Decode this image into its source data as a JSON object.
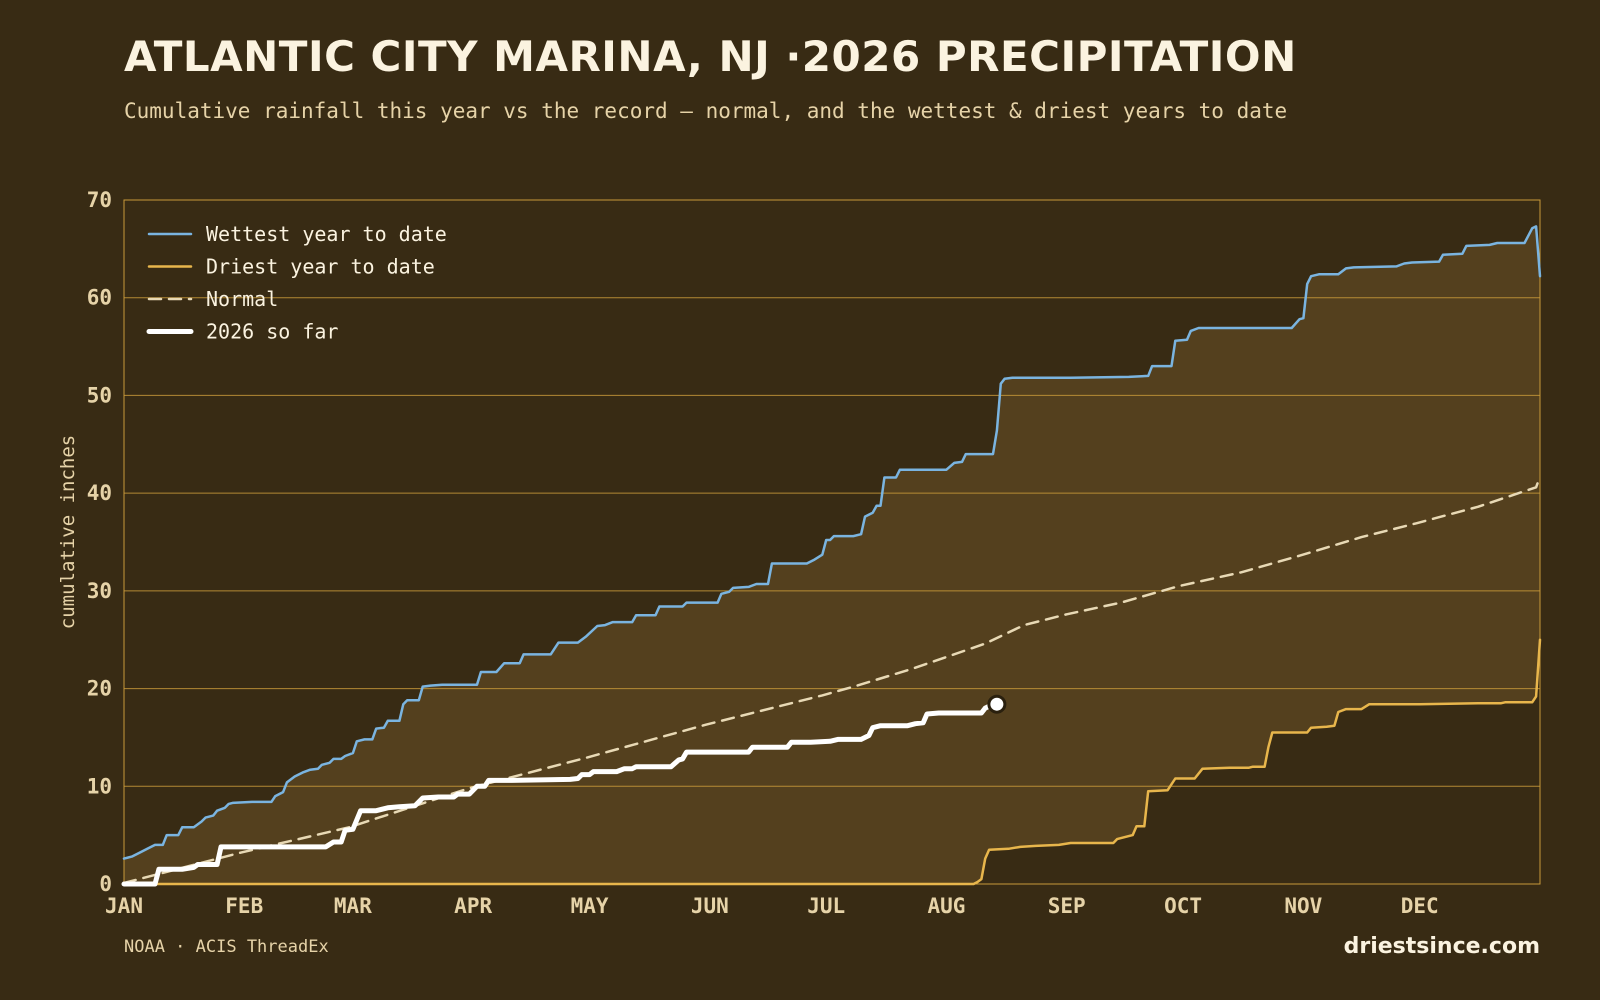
{
  "header": {
    "title": "ATLANTIC CITY MARINA, NJ ·2026 PRECIPITATION",
    "subtitle": "Cumulative rainfall this year vs the record — normal, and the wettest & driest years to date"
  },
  "footer": {
    "source": "NOAA · ACIS ThreadEx",
    "brand": "driestsince.com"
  },
  "colors": {
    "background": "#382b14",
    "band_fill": "#54401e",
    "grid": "#c99a3a",
    "wettest": "#7ab4e0",
    "driest": "#e8b64c",
    "normal": "#e8d9b5",
    "current": "#ffffff"
  },
  "chart_data": {
    "type": "line",
    "ylabel": "cumulative inches",
    "xlabel": "",
    "ylim": [
      0,
      70
    ],
    "yticks": [
      0,
      10,
      20,
      30,
      40,
      50,
      60,
      70
    ],
    "xlim": [
      1,
      366
    ],
    "month_ticks": [
      {
        "label": "JAN",
        "day": 1
      },
      {
        "label": "FEB",
        "day": 32
      },
      {
        "label": "MAR",
        "day": 60
      },
      {
        "label": "APR",
        "day": 91
      },
      {
        "label": "MAY",
        "day": 121
      },
      {
        "label": "JUN",
        "day": 152
      },
      {
        "label": "JUL",
        "day": 182
      },
      {
        "label": "AUG",
        "day": 213
      },
      {
        "label": "SEP",
        "day": 244
      },
      {
        "label": "OCT",
        "day": 274
      },
      {
        "label": "NOV",
        "day": 305
      },
      {
        "label": "DEC",
        "day": 335
      }
    ],
    "grid": true,
    "legend_position": "top-left",
    "series": [
      {
        "name": "Wettest year to date",
        "style": "line",
        "points": [
          [
            1,
            2.6
          ],
          [
            3,
            2.8
          ],
          [
            5,
            3.2
          ],
          [
            7,
            3.6
          ],
          [
            9,
            4.0
          ],
          [
            11,
            4.0
          ],
          [
            12,
            5.0
          ],
          [
            15,
            5.0
          ],
          [
            16,
            5.8
          ],
          [
            19,
            5.8
          ],
          [
            21,
            6.4
          ],
          [
            22,
            6.8
          ],
          [
            24,
            7.0
          ],
          [
            25,
            7.5
          ],
          [
            27,
            7.8
          ],
          [
            28,
            8.2
          ],
          [
            29,
            8.3
          ],
          [
            34,
            8.4
          ],
          [
            39,
            8.4
          ],
          [
            40,
            9.0
          ],
          [
            42,
            9.4
          ],
          [
            43,
            10.4
          ],
          [
            45,
            11.0
          ],
          [
            47,
            11.4
          ],
          [
            49,
            11.7
          ],
          [
            51,
            11.8
          ],
          [
            52,
            12.2
          ],
          [
            54,
            12.4
          ],
          [
            55,
            12.8
          ],
          [
            57,
            12.8
          ],
          [
            58,
            13.1
          ],
          [
            60,
            13.4
          ],
          [
            61,
            14.6
          ],
          [
            63,
            14.8
          ],
          [
            65,
            14.8
          ],
          [
            66,
            15.9
          ],
          [
            68,
            16.0
          ],
          [
            69,
            16.7
          ],
          [
            72,
            16.7
          ],
          [
            73,
            18.4
          ],
          [
            74,
            18.8
          ],
          [
            77,
            18.8
          ],
          [
            78,
            20.2
          ],
          [
            80,
            20.3
          ],
          [
            83,
            20.4
          ],
          [
            92,
            20.4
          ],
          [
            93,
            21.7
          ],
          [
            97,
            21.7
          ],
          [
            99,
            22.6
          ],
          [
            103,
            22.6
          ],
          [
            104,
            23.5
          ],
          [
            111,
            23.5
          ],
          [
            113,
            24.7
          ],
          [
            118,
            24.7
          ],
          [
            120,
            25.3
          ],
          [
            123,
            26.4
          ],
          [
            125,
            26.5
          ],
          [
            127,
            26.8
          ],
          [
            132,
            26.8
          ],
          [
            133,
            27.5
          ],
          [
            138,
            27.5
          ],
          [
            139,
            28.4
          ],
          [
            145,
            28.4
          ],
          [
            146,
            28.8
          ],
          [
            154,
            28.8
          ],
          [
            155,
            29.7
          ],
          [
            157,
            29.9
          ],
          [
            158,
            30.3
          ],
          [
            162,
            30.4
          ],
          [
            164,
            30.7
          ],
          [
            167,
            30.7
          ],
          [
            168,
            32.8
          ],
          [
            177,
            32.8
          ],
          [
            179,
            33.2
          ],
          [
            181,
            33.7
          ],
          [
            182,
            35.2
          ],
          [
            183,
            35.2
          ],
          [
            184,
            35.6
          ],
          [
            189,
            35.6
          ],
          [
            191,
            35.8
          ],
          [
            192,
            37.6
          ],
          [
            194,
            38.0
          ],
          [
            195,
            38.7
          ],
          [
            196,
            38.7
          ],
          [
            197,
            41.6
          ],
          [
            200,
            41.6
          ],
          [
            201,
            42.4
          ],
          [
            213,
            42.4
          ],
          [
            215,
            43.1
          ],
          [
            217,
            43.2
          ],
          [
            218,
            44.0
          ],
          [
            225,
            44.0
          ],
          [
            226,
            46.4
          ],
          [
            227,
            51.2
          ],
          [
            228,
            51.7
          ],
          [
            230,
            51.8
          ],
          [
            245,
            51.8
          ],
          [
            260,
            51.9
          ],
          [
            265,
            52.0
          ],
          [
            266,
            53.0
          ],
          [
            271,
            53.0
          ],
          [
            272,
            55.6
          ],
          [
            275,
            55.7
          ],
          [
            276,
            56.6
          ],
          [
            278,
            56.9
          ],
          [
            302,
            56.9
          ],
          [
            304,
            57.8
          ],
          [
            305,
            57.9
          ],
          [
            306,
            61.4
          ],
          [
            307,
            62.2
          ],
          [
            309,
            62.4
          ],
          [
            314,
            62.4
          ],
          [
            316,
            63.0
          ],
          [
            318,
            63.1
          ],
          [
            329,
            63.2
          ],
          [
            331,
            63.5
          ],
          [
            333,
            63.6
          ],
          [
            340,
            63.7
          ],
          [
            341,
            64.4
          ],
          [
            346,
            64.5
          ],
          [
            347,
            65.3
          ],
          [
            353,
            65.4
          ],
          [
            355,
            65.6
          ],
          [
            362,
            65.6
          ],
          [
            364,
            67.1
          ],
          [
            365,
            67.3
          ],
          [
            366,
            62.2
          ]
        ]
      },
      {
        "name": "Driest year to date",
        "style": "line",
        "points": [
          [
            1,
            0
          ],
          [
            220,
            0
          ],
          [
            221,
            0.2
          ],
          [
            222,
            0.5
          ],
          [
            223,
            2.6
          ],
          [
            224,
            3.5
          ],
          [
            229,
            3.6
          ],
          [
            232,
            3.8
          ],
          [
            236,
            3.9
          ],
          [
            242,
            4.0
          ],
          [
            245,
            4.2
          ],
          [
            256,
            4.2
          ],
          [
            257,
            4.6
          ],
          [
            259,
            4.8
          ],
          [
            261,
            5.0
          ],
          [
            262,
            5.9
          ],
          [
            264,
            5.9
          ],
          [
            265,
            9.5
          ],
          [
            270,
            9.6
          ],
          [
            272,
            10.8
          ],
          [
            277,
            10.8
          ],
          [
            279,
            11.8
          ],
          [
            286,
            11.9
          ],
          [
            291,
            11.9
          ],
          [
            292,
            12.0
          ],
          [
            295,
            12.0
          ],
          [
            296,
            14.0
          ],
          [
            297,
            15.5
          ],
          [
            306,
            15.5
          ],
          [
            307,
            16.0
          ],
          [
            311,
            16.1
          ],
          [
            313,
            16.2
          ],
          [
            314,
            17.6
          ],
          [
            316,
            17.9
          ],
          [
            320,
            17.9
          ],
          [
            322,
            18.4
          ],
          [
            335,
            18.4
          ],
          [
            350,
            18.5
          ],
          [
            356,
            18.5
          ],
          [
            357,
            18.6
          ],
          [
            364,
            18.6
          ],
          [
            365,
            19.2
          ],
          [
            366,
            25.0
          ]
        ]
      },
      {
        "name": "Normal",
        "style": "dashed",
        "points": [
          [
            1,
            0.1
          ],
          [
            31,
            3.2
          ],
          [
            59,
            5.8
          ],
          [
            90,
            9.8
          ],
          [
            120,
            12.9
          ],
          [
            151,
            16.3
          ],
          [
            181,
            19.3
          ],
          [
            190,
            20.3
          ],
          [
            204,
            22.0
          ],
          [
            212,
            23.1
          ],
          [
            223,
            24.6
          ],
          [
            233,
            26.5
          ],
          [
            244,
            27.6
          ],
          [
            258,
            28.8
          ],
          [
            273,
            30.5
          ],
          [
            289,
            31.9
          ],
          [
            304,
            33.6
          ],
          [
            320,
            35.5
          ],
          [
            334,
            36.9
          ],
          [
            350,
            38.6
          ],
          [
            365,
            40.6
          ],
          [
            366,
            41.7
          ]
        ]
      },
      {
        "name": "2026 so far",
        "style": "thick",
        "points": [
          [
            1,
            0
          ],
          [
            9,
            0
          ],
          [
            10,
            1.5
          ],
          [
            16,
            1.5
          ],
          [
            19,
            1.7
          ],
          [
            20,
            2.0
          ],
          [
            25,
            2.0
          ],
          [
            26,
            3.8
          ],
          [
            38,
            3.8
          ],
          [
            53,
            3.8
          ],
          [
            55,
            4.3
          ],
          [
            57,
            4.3
          ],
          [
            58,
            5.5
          ],
          [
            60,
            5.6
          ],
          [
            62,
            7.5
          ],
          [
            66,
            7.5
          ],
          [
            69,
            7.8
          ],
          [
            72,
            7.9
          ],
          [
            76,
            8.0
          ],
          [
            78,
            8.8
          ],
          [
            82,
            8.9
          ],
          [
            86,
            8.9
          ],
          [
            87,
            9.2
          ],
          [
            90,
            9.2
          ],
          [
            92,
            10.0
          ],
          [
            94,
            10.0
          ],
          [
            95,
            10.6
          ],
          [
            101,
            10.6
          ],
          [
            116,
            10.7
          ],
          [
            118,
            10.8
          ],
          [
            119,
            11.2
          ],
          [
            121,
            11.2
          ],
          [
            122,
            11.5
          ],
          [
            128,
            11.5
          ],
          [
            130,
            11.8
          ],
          [
            132,
            11.8
          ],
          [
            133,
            12.0
          ],
          [
            142,
            12.0
          ],
          [
            144,
            12.7
          ],
          [
            145,
            12.8
          ],
          [
            146,
            13.5
          ],
          [
            155,
            13.5
          ],
          [
            162,
            13.5
          ],
          [
            163,
            14.0
          ],
          [
            172,
            14.0
          ],
          [
            173,
            14.5
          ],
          [
            178,
            14.5
          ],
          [
            183,
            14.6
          ],
          [
            185,
            14.8
          ],
          [
            191,
            14.8
          ],
          [
            193,
            15.2
          ],
          [
            194,
            16.0
          ],
          [
            196,
            16.2
          ],
          [
            199,
            16.2
          ],
          [
            203,
            16.2
          ],
          [
            205,
            16.4
          ],
          [
            207,
            16.5
          ],
          [
            208,
            17.4
          ],
          [
            211,
            17.5
          ],
          [
            217,
            17.5
          ],
          [
            222,
            17.5
          ],
          [
            223,
            18.0
          ],
          [
            224,
            18.2
          ],
          [
            225,
            18.3
          ],
          [
            226,
            18.4
          ]
        ]
      }
    ]
  }
}
